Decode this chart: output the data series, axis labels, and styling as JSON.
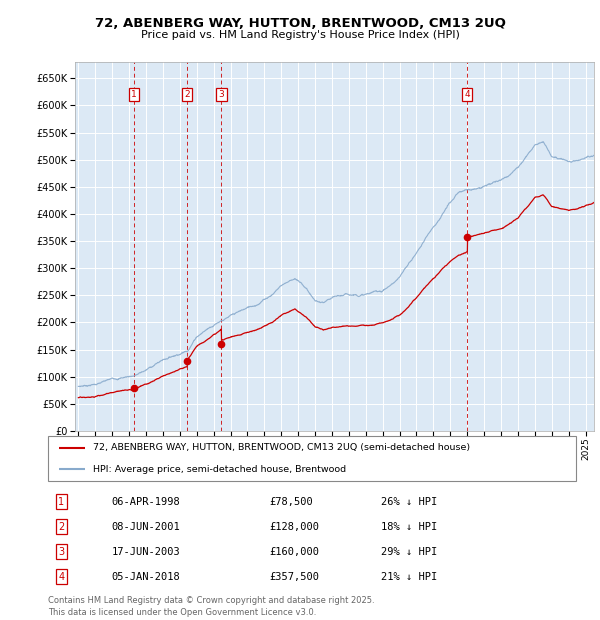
{
  "title": "72, ABENBERG WAY, HUTTON, BRENTWOOD, CM13 2UQ",
  "subtitle": "Price paid vs. HM Land Registry's House Price Index (HPI)",
  "ylim": [
    0,
    680000
  ],
  "yticks": [
    0,
    50000,
    100000,
    150000,
    200000,
    250000,
    300000,
    350000,
    400000,
    450000,
    500000,
    550000,
    600000,
    650000
  ],
  "xlim_start": 1994.8,
  "xlim_end": 2025.5,
  "background_color": "#dce9f5",
  "grid_color": "#ffffff",
  "sale_color": "#cc0000",
  "hpi_color": "#88aacc",
  "dashed_line_color": "#cc0000",
  "transactions": [
    {
      "label": "1",
      "date_num": 1998.27,
      "price": 78500,
      "text": "06-APR-1998",
      "amount": "£78,500",
      "pct": "26% ↓ HPI"
    },
    {
      "label": "2",
      "date_num": 2001.44,
      "price": 128000,
      "text": "08-JUN-2001",
      "amount": "£128,000",
      "pct": "18% ↓ HPI"
    },
    {
      "label": "3",
      "date_num": 2003.46,
      "price": 160000,
      "text": "17-JUN-2003",
      "amount": "£160,000",
      "pct": "29% ↓ HPI"
    },
    {
      "label": "4",
      "date_num": 2018.01,
      "price": 357500,
      "text": "05-JAN-2018",
      "amount": "£357,500",
      "pct": "21% ↓ HPI"
    }
  ],
  "legend_sale_label": "72, ABENBERG WAY, HUTTON, BRENTWOOD, CM13 2UQ (semi-detached house)",
  "legend_hpi_label": "HPI: Average price, semi-detached house, Brentwood",
  "footer_line1": "Contains HM Land Registry data © Crown copyright and database right 2025.",
  "footer_line2": "This data is licensed under the Open Government Licence v3.0."
}
